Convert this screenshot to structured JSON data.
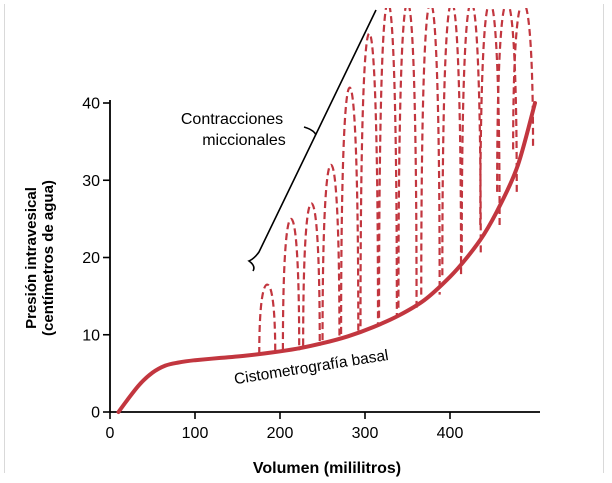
{
  "chart_data": {
    "type": "line",
    "title": "",
    "xlabel": "Volumen (mililitros)",
    "ylabel": [
      "Presión intravesical",
      "(centímetros de agua)"
    ],
    "xlim": [
      0,
      500
    ],
    "ylim": [
      0,
      40
    ],
    "xticks": [
      0,
      100,
      200,
      300,
      400
    ],
    "yticks": [
      0,
      10,
      20,
      30,
      40
    ],
    "colors": {
      "curve": "#c2363f",
      "axis": "#000000"
    },
    "series": [
      {
        "name": "Cistometrografía basal",
        "style": "solid",
        "x": [
          10,
          20,
          35,
          50,
          65,
          80,
          100,
          130,
          160,
          190,
          220,
          250,
          280,
          310,
          340,
          370,
          400,
          420,
          440,
          460,
          480,
          500
        ],
        "y": [
          0,
          1.5,
          3.6,
          5.1,
          6.0,
          6.4,
          6.7,
          7.0,
          7.3,
          7.7,
          8.2,
          8.9,
          9.8,
          11.0,
          12.5,
          14.5,
          17.5,
          20.0,
          23.0,
          27.0,
          32.0,
          40.0
        ]
      },
      {
        "name": "Contracciones miccionales",
        "style": "dashed",
        "peaks": [
          {
            "x": 185,
            "base": 7.5,
            "peak": 16.5
          },
          {
            "x": 213,
            "base": 8.0,
            "peak": 25.0
          },
          {
            "x": 237,
            "base": 8.6,
            "peak": 27.0
          },
          {
            "x": 260,
            "base": 9.3,
            "peak": 32.0
          },
          {
            "x": 282,
            "base": 10.1,
            "peak": 42.0
          },
          {
            "x": 305,
            "base": 11.1,
            "peak": 49.0
          },
          {
            "x": 327,
            "base": 12.2,
            "peak": 53.0
          },
          {
            "x": 350,
            "base": 13.5,
            "peak": 53.0
          },
          {
            "x": 377,
            "base": 15.2,
            "peak": 53.0
          },
          {
            "x": 402,
            "base": 17.7,
            "peak": 53.0
          },
          {
            "x": 425,
            "base": 20.6,
            "peak": 53.0
          },
          {
            "x": 447,
            "base": 24.2,
            "peak": 53.0
          },
          {
            "x": 467,
            "base": 28.5,
            "peak": 53.0
          },
          {
            "x": 486,
            "base": 34.0,
            "peak": 53.0
          }
        ]
      }
    ],
    "annotations": [
      {
        "text": "Contracciones",
        "role": "bracket-label-line1"
      },
      {
        "text": "miccionales",
        "role": "bracket-label-line2"
      },
      {
        "text": "Cistometrografía basal",
        "role": "curve-label"
      }
    ]
  }
}
